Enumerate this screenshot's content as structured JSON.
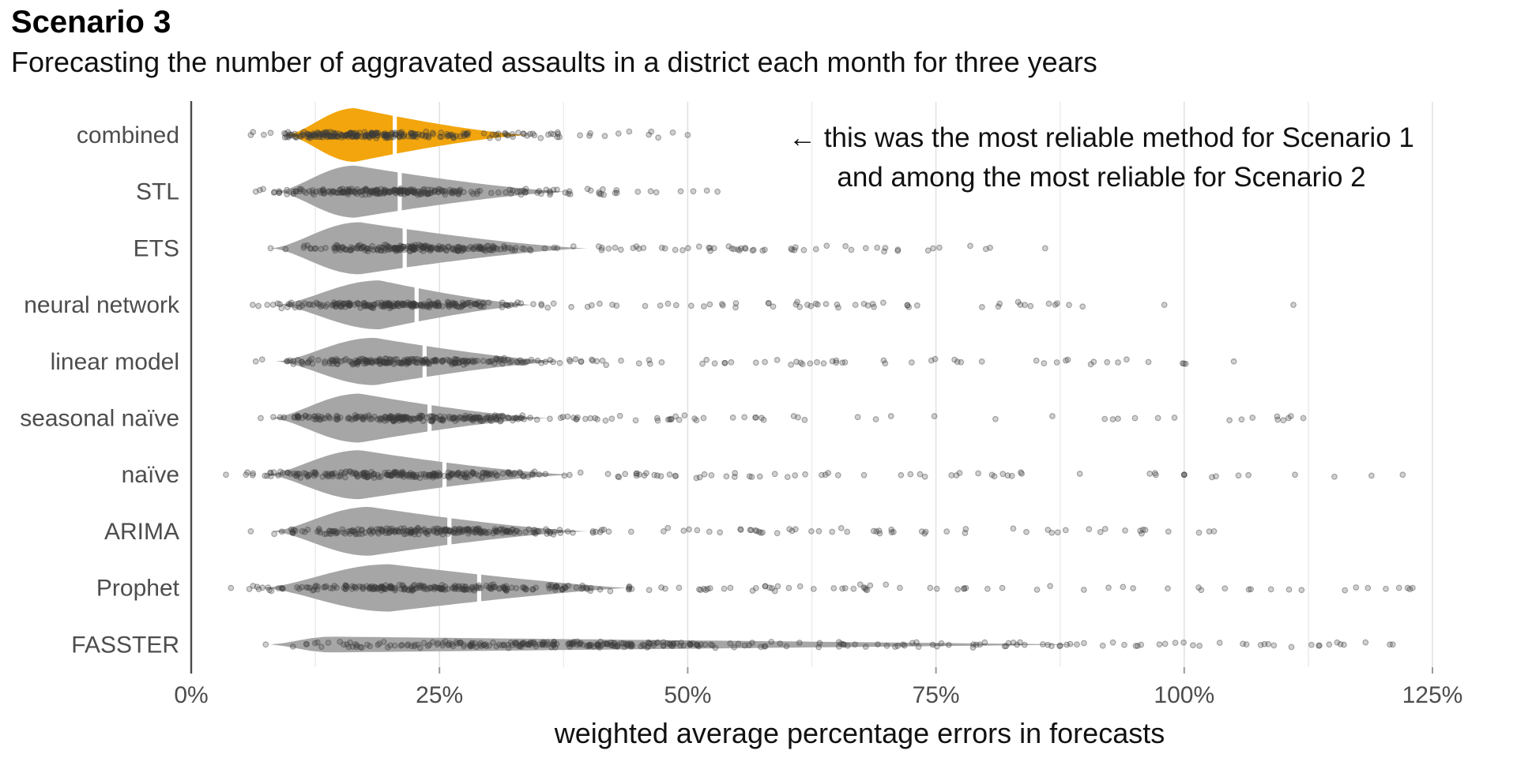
{
  "chart_data": {
    "type": "violin-jitter",
    "title": "Scenario 3",
    "subtitle": "Forecasting the number of aggravated assaults in a district each month for three years",
    "xlabel": "weighted average percentage errors in forecasts",
    "xlim": [
      0,
      128
    ],
    "grid": {
      "minor_step_pct": 12.5,
      "minor_color": "#ededed",
      "major_color": "#e2e2e2"
    },
    "axis": {
      "line_color": "#4a4a4a",
      "tick_color": "#9a9a9a",
      "text_color": "#4d4d4d"
    },
    "annotation": {
      "line1": "← this was the most reliable method for Scenario 1",
      "line2": "and among the most reliable for Scenario 2"
    },
    "x_axis": {
      "ticks": [
        {
          "pct": 0,
          "label": "0%"
        },
        {
          "pct": 25,
          "label": "25%"
        },
        {
          "pct": 50,
          "label": "50%"
        },
        {
          "pct": 75,
          "label": "75%"
        },
        {
          "pct": 100,
          "label": "100%"
        },
        {
          "pct": 125,
          "label": "125%"
        }
      ]
    },
    "colors": {
      "highlight_violin": "#F2A50C",
      "default_violin": "#A6A6A6",
      "point_fill": "rgba(60,60,60,0.24)",
      "point_stroke": "rgba(60,60,60,0.42)",
      "median_gap": "#ffffff"
    },
    "categories": [
      "combined",
      "STL",
      "ETS",
      "neural network",
      "linear model",
      "seasonal naïve",
      "naïve",
      "ARIMA",
      "Prophet",
      "FASSTER"
    ],
    "methods": [
      {
        "name": "combined",
        "highlight": true,
        "violin": {
          "lo": 9.5,
          "peak": 16.5,
          "hi": 34,
          "max_half": 34,
          "median": 20.5,
          "tail_exp": 1.35
        },
        "points": {
          "left": 6,
          "dense_hi": 30,
          "mid_hi": 38,
          "max": 50,
          "n_dense": 210,
          "n_mid": 26,
          "n_far": 10,
          "extra": []
        }
      },
      {
        "name": "STL",
        "highlight": false,
        "violin": {
          "lo": 8.5,
          "peak": 16.5,
          "hi": 38,
          "max_half": 33,
          "median": 21,
          "tail_exp": 1.35
        },
        "points": {
          "left": 6.5,
          "dense_hi": 32,
          "mid_hi": 42,
          "max": 53,
          "n_dense": 210,
          "n_mid": 30,
          "n_far": 9,
          "extra": []
        }
      },
      {
        "name": "ETS",
        "highlight": false,
        "violin": {
          "lo": 8,
          "peak": 17,
          "hi": 40,
          "max_half": 33,
          "median": 21.5,
          "tail_exp": 1.35
        },
        "points": {
          "left": 8,
          "dense_hi": 36,
          "mid_hi": 62,
          "max": 86,
          "n_dense": 215,
          "n_mid": 40,
          "n_far": 16,
          "extra": []
        }
      },
      {
        "name": "neural network",
        "highlight": false,
        "violin": {
          "lo": 8.5,
          "peak": 19,
          "hi": 34.5,
          "max_half": 31,
          "median": 22.7,
          "tail_exp": 1.35
        },
        "points": {
          "left": 6.2,
          "dense_hi": 35,
          "mid_hi": 70,
          "max": 98,
          "n_dense": 210,
          "n_mid": 40,
          "n_far": 16,
          "extra": [
            111
          ]
        }
      },
      {
        "name": "linear model",
        "highlight": false,
        "violin": {
          "lo": 8.5,
          "peak": 18.5,
          "hi": 37.5,
          "max_half": 30,
          "median": 23.5,
          "tail_exp": 1.35
        },
        "points": {
          "left": 6.5,
          "dense_hi": 37,
          "mid_hi": 75,
          "max": 105,
          "n_dense": 215,
          "n_mid": 42,
          "n_far": 18,
          "extra": []
        }
      },
      {
        "name": "seasonal naïve",
        "highlight": false,
        "violin": {
          "lo": 8,
          "peak": 17,
          "hi": 36,
          "max_half": 31,
          "median": 24,
          "tail_exp": 1.35
        },
        "points": {
          "left": 7,
          "dense_hi": 36,
          "mid_hi": 72,
          "max": 112,
          "n_dense": 210,
          "n_mid": 40,
          "n_far": 16,
          "extra": [
            110.5
          ]
        }
      },
      {
        "name": "naïve",
        "highlight": false,
        "violin": {
          "lo": 7.5,
          "peak": 17,
          "hi": 38.5,
          "max_half": 31,
          "median": 25.5,
          "tail_exp": 1.35
        },
        "points": {
          "left": 3.5,
          "dense_hi": 38,
          "mid_hi": 80,
          "max": 122,
          "n_dense": 215,
          "n_mid": 45,
          "n_far": 18,
          "extra": [
            100,
            100,
            100
          ]
        }
      },
      {
        "name": "ARIMA",
        "highlight": false,
        "violin": {
          "lo": 8,
          "peak": 18,
          "hi": 40,
          "max_half": 31,
          "median": 26,
          "tail_exp": 1.35
        },
        "points": {
          "left": 6,
          "dense_hi": 40,
          "mid_hi": 78,
          "max": 103,
          "n_dense": 220,
          "n_mid": 45,
          "n_far": 18,
          "extra": []
        }
      },
      {
        "name": "Prophet",
        "highlight": false,
        "violin": {
          "lo": 7,
          "peak": 20,
          "hi": 44,
          "max_half": 30,
          "median": 29,
          "tail_exp": 1.2
        },
        "points": {
          "left": 4,
          "dense_hi": 44,
          "mid_hi": 85,
          "max": 123,
          "n_dense": 225,
          "n_mid": 48,
          "n_far": 20,
          "extra": [
            118.5,
            122.5
          ]
        }
      },
      {
        "name": "FASSTER",
        "highlight": false,
        "violin": {
          "lo": 8,
          "peak": 14,
          "hi": 90,
          "max_half": 10,
          "median": null,
          "tail_exp": 1.0
        },
        "points": {
          "left": 7.5,
          "dense_hi": 65,
          "mid_hi": 105,
          "max": 121,
          "n_dense": 235,
          "n_mid": 55,
          "n_far": 14,
          "extra": [
            114.6,
            120.7
          ]
        }
      }
    ]
  }
}
